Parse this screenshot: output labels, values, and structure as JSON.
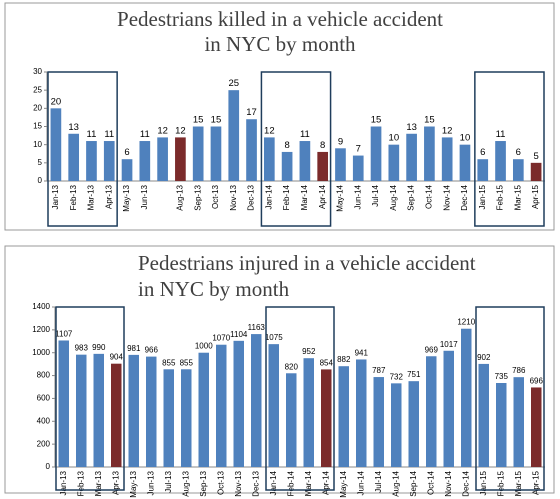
{
  "chart_data": [
    {
      "type": "bar",
      "title": [
        "Pedestrians killed in a vehicle accident",
        "in NYC by month"
      ],
      "categories": [
        "Jan-13",
        "Feb-13",
        "Mar-13",
        "Apr-13",
        "May-13",
        "Jun-13",
        null,
        "Aug-13",
        "Sep-13",
        "Oct-13",
        "Nov-13",
        "Dec-13",
        "Jan-14",
        "Feb-14",
        "Mar-14",
        "Apr-14",
        "May-14",
        "Jun-14",
        "Jul-14",
        "Aug-14",
        "Sep-14",
        "Oct-14",
        "Nov-14",
        "Dec-14",
        "Jan-15",
        "Feb-15",
        "Mar-15",
        "Apr-15"
      ],
      "values": [
        20,
        13,
        11,
        11,
        6,
        11,
        12,
        12,
        15,
        15,
        25,
        17,
        12,
        8,
        11,
        8,
        9,
        7,
        15,
        10,
        13,
        15,
        12,
        10,
        6,
        11,
        6,
        5
      ],
      "colors": [
        "#4f81bd",
        "#4f81bd",
        "#4f81bd",
        "#4f81bd",
        "#4f81bd",
        "#4f81bd",
        "#4f81bd",
        "#7b2b2b",
        "#4f81bd",
        "#4f81bd",
        "#4f81bd",
        "#4f81bd",
        "#4f81bd",
        "#4f81bd",
        "#4f81bd",
        "#7b2b2b",
        "#4f81bd",
        "#4f81bd",
        "#4f81bd",
        "#4f81bd",
        "#4f81bd",
        "#4f81bd",
        "#4f81bd",
        "#4f81bd",
        "#4f81bd",
        "#4f81bd",
        "#4f81bd",
        "#7b2b2b"
      ],
      "ylim": [
        0,
        30
      ],
      "yticks": [
        0,
        5,
        10,
        15,
        20,
        25,
        30
      ],
      "grid": false
    },
    {
      "type": "bar",
      "title": [
        "Pedestrians injured in a vehicle accident",
        "in NYC by month"
      ],
      "categories": [
        "Jan-13",
        "Feb-13",
        "Mar-13",
        "Apr-13",
        "May-13",
        "Jun-13",
        "Jul-13",
        "Aug-13",
        "Sep-13",
        "Oct-13",
        "Nov-13",
        "Dec-13",
        "Jan-14",
        "Feb-14",
        "Mar-14",
        "Apr-14",
        "May-14",
        "Jun-14",
        "Jul-14",
        "Aug-14",
        "Sep-14",
        "Oct-14",
        "Nov-14",
        "Dec-14",
        "Jan-15",
        "Feb-15",
        "Mar-15",
        "Apr-15"
      ],
      "values": [
        1107,
        983,
        990,
        904,
        981,
        966,
        855,
        855,
        1000,
        1070,
        1104,
        1163,
        1075,
        820,
        952,
        854,
        882,
        941,
        787,
        732,
        751,
        969,
        1017,
        1210,
        902,
        735,
        786,
        696
      ],
      "colors": [
        "#4f81bd",
        "#4f81bd",
        "#4f81bd",
        "#7b2b2b",
        "#4f81bd",
        "#4f81bd",
        "#4f81bd",
        "#4f81bd",
        "#4f81bd",
        "#4f81bd",
        "#4f81bd",
        "#4f81bd",
        "#4f81bd",
        "#4f81bd",
        "#4f81bd",
        "#7b2b2b",
        "#4f81bd",
        "#4f81bd",
        "#4f81bd",
        "#4f81bd",
        "#4f81bd",
        "#4f81bd",
        "#4f81bd",
        "#4f81bd",
        "#4f81bd",
        "#4f81bd",
        "#4f81bd",
        "#7b2b2b"
      ],
      "ylim": [
        0,
        1400
      ],
      "yticks": [
        0,
        200,
        400,
        600,
        800,
        1000,
        1200,
        1400
      ],
      "grid": false
    }
  ]
}
